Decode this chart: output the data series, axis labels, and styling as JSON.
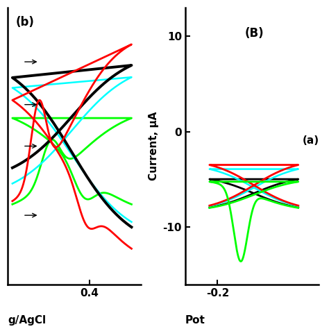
{
  "fig_width": 4.74,
  "fig_height": 4.74,
  "dpi": 100,
  "bg_color": "#ffffff",
  "panel_A": {
    "label": "(b)",
    "xlim": [
      0.05,
      0.62
    ],
    "ylim": [
      -1.05,
      1.15
    ],
    "x_ticks": [
      0.4
    ],
    "colors": [
      "red",
      "black",
      "cyan",
      "lime"
    ],
    "linewidths": [
      2.0,
      2.8,
      1.8,
      2.0
    ]
  },
  "panel_B": {
    "label": "(B)",
    "annotation": "(a)",
    "ylabel": "Current, μA",
    "xlim": [
      -0.28,
      0.05
    ],
    "ylim": [
      -16,
      13
    ],
    "x_ticks": [
      -0.2
    ],
    "y_ticks": [
      -10,
      0,
      10
    ],
    "colors": [
      "red",
      "black",
      "cyan",
      "lime"
    ],
    "linewidths": [
      2.0,
      2.0,
      1.8,
      2.0
    ]
  }
}
